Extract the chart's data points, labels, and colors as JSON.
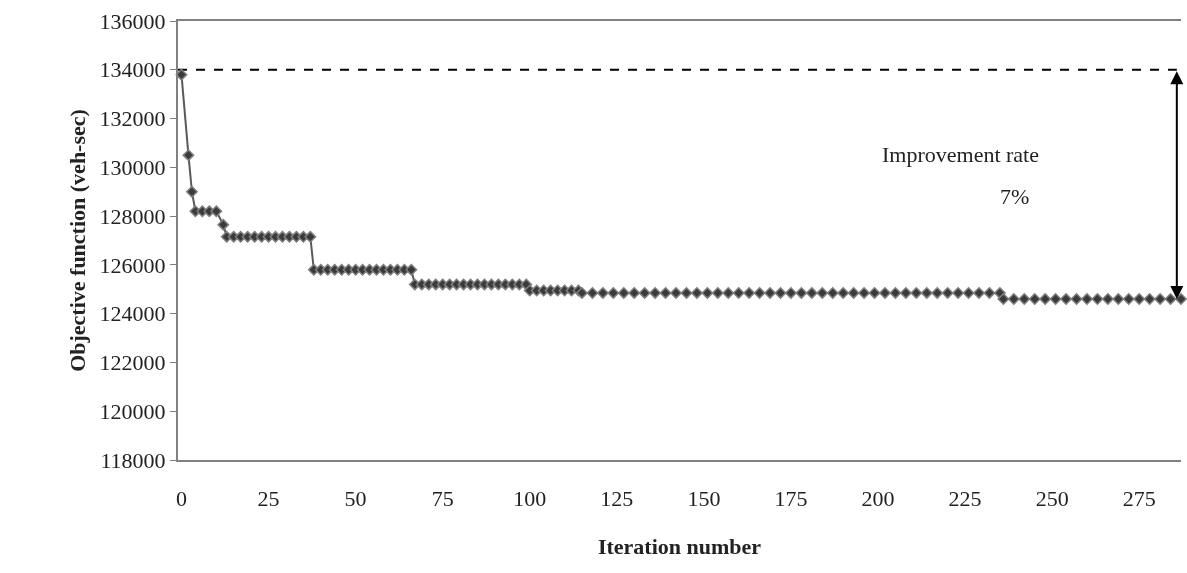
{
  "chart_data": {
    "type": "line",
    "xlabel": "Iteration number",
    "ylabel": "Objective function (veh-sec)",
    "xlim": [
      -1,
      287
    ],
    "grid": false,
    "xticks": [
      0,
      25,
      50,
      75,
      100,
      125,
      150,
      175,
      200,
      225,
      250,
      275
    ],
    "ylim": [
      118000,
      136000
    ],
    "yticks": [
      118000,
      120000,
      122000,
      124000,
      126000,
      128000,
      130000,
      132000,
      134000,
      136000
    ],
    "marker": "diamond",
    "line_style": "solid",
    "ref_lines": [
      {
        "axis": "y",
        "value": 134000,
        "color": "#000000",
        "line_style": "dashed"
      }
    ],
    "annotations": [
      "Improvement rate",
      "7%"
    ],
    "series": [
      {
        "color": "#595959",
        "x": [
          0,
          2,
          3,
          4,
          6,
          8,
          10,
          12,
          13,
          15,
          17,
          19,
          21,
          23,
          25,
          27,
          29,
          31,
          33,
          35,
          37,
          38,
          40,
          42,
          44,
          46,
          48,
          50,
          52,
          54,
          56,
          58,
          60,
          62,
          64,
          66,
          67,
          69,
          71,
          73,
          75,
          77,
          79,
          81,
          83,
          85,
          87,
          89,
          91,
          93,
          95,
          97,
          99,
          100,
          102,
          104,
          106,
          108,
          110,
          112,
          114,
          115,
          118,
          121,
          124,
          127,
          130,
          133,
          136,
          139,
          142,
          145,
          148,
          151,
          154,
          157,
          160,
          163,
          166,
          169,
          172,
          175,
          178,
          181,
          184,
          187,
          190,
          193,
          196,
          199,
          202,
          205,
          208,
          211,
          214,
          217,
          220,
          223,
          226,
          229,
          232,
          235,
          236,
          239,
          242,
          245,
          248,
          251,
          254,
          257,
          260,
          263,
          266,
          269,
          272,
          275,
          278,
          281,
          284,
          287
        ],
        "values": [
          133800,
          130500,
          129000,
          128200,
          128200,
          128200,
          128200,
          127650,
          127150,
          127150,
          127150,
          127150,
          127150,
          127150,
          127150,
          127150,
          127150,
          127150,
          127150,
          127150,
          127150,
          125800,
          125800,
          125800,
          125800,
          125800,
          125800,
          125800,
          125800,
          125800,
          125800,
          125800,
          125800,
          125800,
          125800,
          125800,
          125200,
          125200,
          125200,
          125200,
          125200,
          125200,
          125200,
          125200,
          125200,
          125200,
          125200,
          125200,
          125200,
          125200,
          125200,
          125200,
          125200,
          124950,
          124950,
          124950,
          124950,
          124950,
          124950,
          124950,
          124950,
          124850,
          124850,
          124850,
          124850,
          124850,
          124850,
          124850,
          124850,
          124850,
          124850,
          124850,
          124850,
          124850,
          124850,
          124850,
          124850,
          124850,
          124850,
          124850,
          124850,
          124850,
          124850,
          124850,
          124850,
          124850,
          124850,
          124850,
          124850,
          124850,
          124850,
          124850,
          124850,
          124850,
          124850,
          124850,
          124850,
          124850,
          124850,
          124850,
          124850,
          124850,
          124600,
          124600,
          124600,
          124600,
          124600,
          124600,
          124600,
          124600,
          124600,
          124600,
          124600,
          124600,
          124600,
          124600,
          124600,
          124600,
          124600,
          124600
        ]
      }
    ]
  }
}
